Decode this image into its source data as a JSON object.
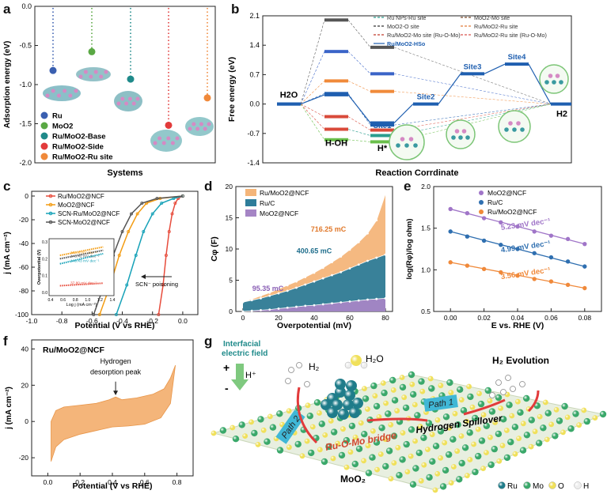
{
  "chart_data": [
    {
      "panel": "a",
      "type": "scatter",
      "xlabel": "Systems",
      "ylabel": "Adsorption energy (eV)",
      "ylim": [
        -2.0,
        0.0
      ],
      "yticks": [
        "0.0",
        "-0.5",
        "-1.0",
        "-1.5",
        "-2.0"
      ],
      "series": [
        {
          "name": "Ru",
          "color": "#3a5fb0",
          "value": -0.82
        },
        {
          "name": "MoO2",
          "color": "#5aa844",
          "value": -0.58
        },
        {
          "name": "Ru/MoO2-Base",
          "color": "#1f8a8a",
          "value": -0.93
        },
        {
          "name": "Ru/MoO2-Side",
          "color": "#e23b3b",
          "value": -1.52
        },
        {
          "name": "Ru/MoO2-Ru site",
          "color": "#f0893a",
          "value": -1.17
        }
      ]
    },
    {
      "panel": "b",
      "type": "line",
      "xlabel": "Reaction Corrdinate",
      "ylabel": "Free energy (eV)",
      "ylim": [
        -1.4,
        2.1
      ],
      "yticks": [
        "2.1",
        "1.4",
        "0.7",
        "0.0",
        "-0.7",
        "-1.4"
      ],
      "state_labels": [
        "H2O",
        "H-OH",
        "H*",
        "H2"
      ],
      "site_labels": [
        "Site1",
        "Site2",
        "Site3",
        "Site4"
      ],
      "legend": [
        {
          "name": "Ru NPs-Ru site",
          "color": "#2a9d8f",
          "dash": true
        },
        {
          "name": "MoO2-Mo site",
          "color": "#7a4a2a",
          "dash": true
        },
        {
          "name": "MoO2-O site",
          "color": "#333333",
          "dash": true
        },
        {
          "name": "Ru/MoO2-Ru site",
          "color": "#e07b39",
          "dash": true
        },
        {
          "name": "Ru/MoO2-Mo site (Ru-O-Mo)",
          "color": "#c0392b",
          "dash": true
        },
        {
          "name": "Ru/MoO2-Ru site (Ru-O-Mo)",
          "color": "#d9534f",
          "dash": true
        },
        {
          "name": "Ru/MoO2-HSo",
          "color": "#1f5fb0",
          "dash": false
        }
      ],
      "hoh_levels": [
        2.0,
        1.25,
        0.55,
        0.25,
        -0.3,
        -0.6,
        -0.85
      ],
      "hstar_levels": [
        1.35,
        0.72,
        0.3,
        -0.5,
        -0.62,
        -0.75,
        -0.9
      ],
      "hso_path": [
        0.0,
        0.22,
        -0.45,
        0.0,
        0.72,
        0.95,
        0.0
      ]
    },
    {
      "panel": "c",
      "type": "line",
      "xlabel": "Potential (V vs RHE)",
      "ylabel": "j (mA cm⁻²)",
      "xlim": [
        -1.0,
        0.1
      ],
      "ylim": [
        -100,
        0
      ],
      "xticks": [
        "-1.0",
        "-0.8",
        "-0.6",
        "-0.4",
        "-0.2",
        "0.0"
      ],
      "yticks": [
        "0",
        "-20",
        "-40",
        "-60",
        "-80",
        "-100"
      ],
      "annotation": "SCN⁻ poisoning",
      "series": [
        {
          "name": "Ru/MoO2@NCF",
          "color": "#e74c3c",
          "x": [
            -0.16,
            -0.13,
            -0.11,
            -0.09,
            -0.07,
            -0.05,
            -0.03,
            0.0
          ],
          "y": [
            -100,
            -75,
            -50,
            -30,
            -15,
            -6,
            -2,
            0
          ]
        },
        {
          "name": "MoO2@NCF",
          "color": "#f39c12",
          "x": [
            -0.55,
            -0.48,
            -0.42,
            -0.36,
            -0.3,
            -0.24,
            -0.15,
            0.0
          ],
          "y": [
            -100,
            -75,
            -50,
            -30,
            -15,
            -6,
            -2,
            0
          ]
        },
        {
          "name": "SCN-Ru/MoO2@NCF",
          "color": "#17a2b8",
          "x": [
            -0.44,
            -0.37,
            -0.31,
            -0.26,
            -0.2,
            -0.14,
            -0.06,
            0.0
          ],
          "y": [
            -100,
            -75,
            -50,
            -30,
            -15,
            -6,
            -2,
            0
          ]
        },
        {
          "name": "SCN-MoO2@NCF",
          "color": "#555555",
          "x": [
            -0.59,
            -0.52,
            -0.46,
            -0.4,
            -0.34,
            -0.27,
            -0.17,
            0.0
          ],
          "y": [
            -100,
            -75,
            -50,
            -30,
            -15,
            -6,
            -2,
            0
          ]
        }
      ],
      "inset": {
        "xlabel": "Log j (mA cm⁻²)",
        "ylabel": "Overpotential (V)",
        "xticks": [
          "0.4",
          "0.6",
          "0.8",
          "1.0",
          "1.2",
          "1.4"
        ],
        "yticks": [
          "0.0",
          "0.1",
          "0.2",
          "0.3"
        ],
        "labels": [
          "163.8 mV dec⁻¹",
          "143.42 mV dec⁻¹",
          "149.43 mV dec⁻¹",
          "37.80 mV dec⁻¹"
        ]
      }
    },
    {
      "panel": "d",
      "type": "area",
      "xlabel": "Overpotential (mV)",
      "ylabel": "Cφ (F)",
      "xlim": [
        0,
        80
      ],
      "ylim": [
        0,
        20
      ],
      "xticks": [
        "0",
        "20",
        "40",
        "60",
        "80"
      ],
      "yticks": [
        "0",
        "5",
        "10",
        "15",
        "20"
      ],
      "x": [
        0,
        5,
        10,
        15,
        20,
        25,
        30,
        35,
        40,
        45,
        50,
        55,
        60,
        65,
        70,
        75,
        80
      ],
      "series": [
        {
          "name": "Ru/MoO2@NCF",
          "color": "#f4b57a",
          "label": "716.25 mC",
          "values": [
            1.5,
            2.0,
            2.5,
            3.0,
            3.6,
            4.2,
            4.8,
            5.5,
            6.2,
            7.0,
            7.9,
            8.8,
            9.9,
            11.1,
            12.5,
            14.6,
            18.8
          ]
        },
        {
          "name": "Ru/C",
          "color": "#2e7d9a",
          "label": "400.65 mC",
          "values": [
            1.5,
            1.8,
            2.1,
            2.5,
            2.9,
            3.3,
            3.8,
            4.3,
            4.8,
            5.3,
            5.8,
            6.3,
            6.9,
            7.5,
            8.1,
            8.6,
            9.1
          ]
        },
        {
          "name": "MoO2@NCF",
          "color": "#a585c5",
          "label": "95.35 mC",
          "values": [
            0.0,
            0.1,
            0.2,
            0.3,
            0.45,
            0.6,
            0.75,
            0.9,
            1.0,
            1.15,
            1.3,
            1.45,
            1.6,
            1.75,
            1.9,
            2.0,
            2.1
          ]
        }
      ]
    },
    {
      "panel": "e",
      "type": "scatter",
      "xlabel": "E vs. RHE (V)",
      "ylabel": "log(Rφ)/log ohm)",
      "xlim": [
        -0.01,
        0.09
      ],
      "ylim": [
        0.5,
        2.0
      ],
      "xticks": [
        "0.00",
        "0.02",
        "0.04",
        "0.06",
        "0.08"
      ],
      "yticks": [
        "0.5",
        "1.0",
        "1.5",
        "2.0"
      ],
      "x": [
        0.0,
        0.01,
        0.02,
        0.03,
        0.04,
        0.05,
        0.06,
        0.07,
        0.08
      ],
      "series": [
        {
          "name": "MoO2@NCF",
          "color": "#a075c8",
          "label": "5.23 mV dec⁻¹",
          "values": [
            1.73,
            1.68,
            1.62,
            1.57,
            1.52,
            1.46,
            1.41,
            1.37,
            1.31
          ]
        },
        {
          "name": "Ru/C",
          "color": "#2f6fb0",
          "label": "4.99 mV dec⁻¹",
          "values": [
            1.46,
            1.4,
            1.35,
            1.3,
            1.25,
            1.2,
            1.15,
            1.1,
            1.04
          ]
        },
        {
          "name": "Ru/MoO2@NCF",
          "color": "#f0893a",
          "label": "3.56 mV dec⁻¹",
          "values": [
            1.09,
            1.05,
            1.01,
            0.97,
            0.93,
            0.89,
            0.86,
            0.82,
            0.78
          ]
        }
      ]
    },
    {
      "panel": "f",
      "type": "area",
      "title": "Ru/MoO2@NCF",
      "xlabel": "Potential (V vs RHE)",
      "ylabel": "j (mA cm⁻²)",
      "xlim": [
        -0.1,
        0.9
      ],
      "ylim": [
        -30,
        45
      ],
      "xticks": [
        "0.0",
        "0.2",
        "0.4",
        "0.6",
        "0.8"
      ],
      "yticks": [
        "40",
        "20",
        "0",
        "-20"
      ],
      "annotation": "Hydrogen desorption peak",
      "upper": [
        [
          0.02,
          0
        ],
        [
          0.05,
          6
        ],
        [
          0.1,
          8
        ],
        [
          0.2,
          9
        ],
        [
          0.3,
          10
        ],
        [
          0.38,
          12
        ],
        [
          0.42,
          13.5
        ],
        [
          0.46,
          12
        ],
        [
          0.55,
          13
        ],
        [
          0.65,
          15
        ],
        [
          0.72,
          18
        ],
        [
          0.76,
          24
        ],
        [
          0.79,
          31
        ]
      ],
      "lower": [
        [
          0.02,
          -22
        ],
        [
          0.05,
          -14
        ],
        [
          0.1,
          -10
        ],
        [
          0.2,
          -7
        ],
        [
          0.3,
          -5
        ],
        [
          0.4,
          -3
        ],
        [
          0.5,
          -2.5
        ],
        [
          0.6,
          -1.5
        ],
        [
          0.7,
          2
        ],
        [
          0.76,
          10
        ],
        [
          0.79,
          31
        ]
      ]
    },
    {
      "panel": "g",
      "type": "illustration",
      "labels": {
        "field": "Interfacial electric field",
        "hplus": "H⁺",
        "plus": "+",
        "minus": "-",
        "h2": "H₂",
        "h2o": "H₂O",
        "evolution": "H₂ Evolution",
        "path2": "Path 2",
        "path1": "Path 1",
        "bridge": "Ru-O-Mo bridge",
        "spillover": "Hydrogen Spillover",
        "support": "MoO₂"
      },
      "legend": [
        {
          "name": "Ru",
          "color": "#1f7c8a"
        },
        {
          "name": "Mo",
          "color": "#3aa86a"
        },
        {
          "name": "O",
          "color": "#f0e05a"
        },
        {
          "name": "H",
          "color": "#ffffff"
        }
      ]
    }
  ]
}
